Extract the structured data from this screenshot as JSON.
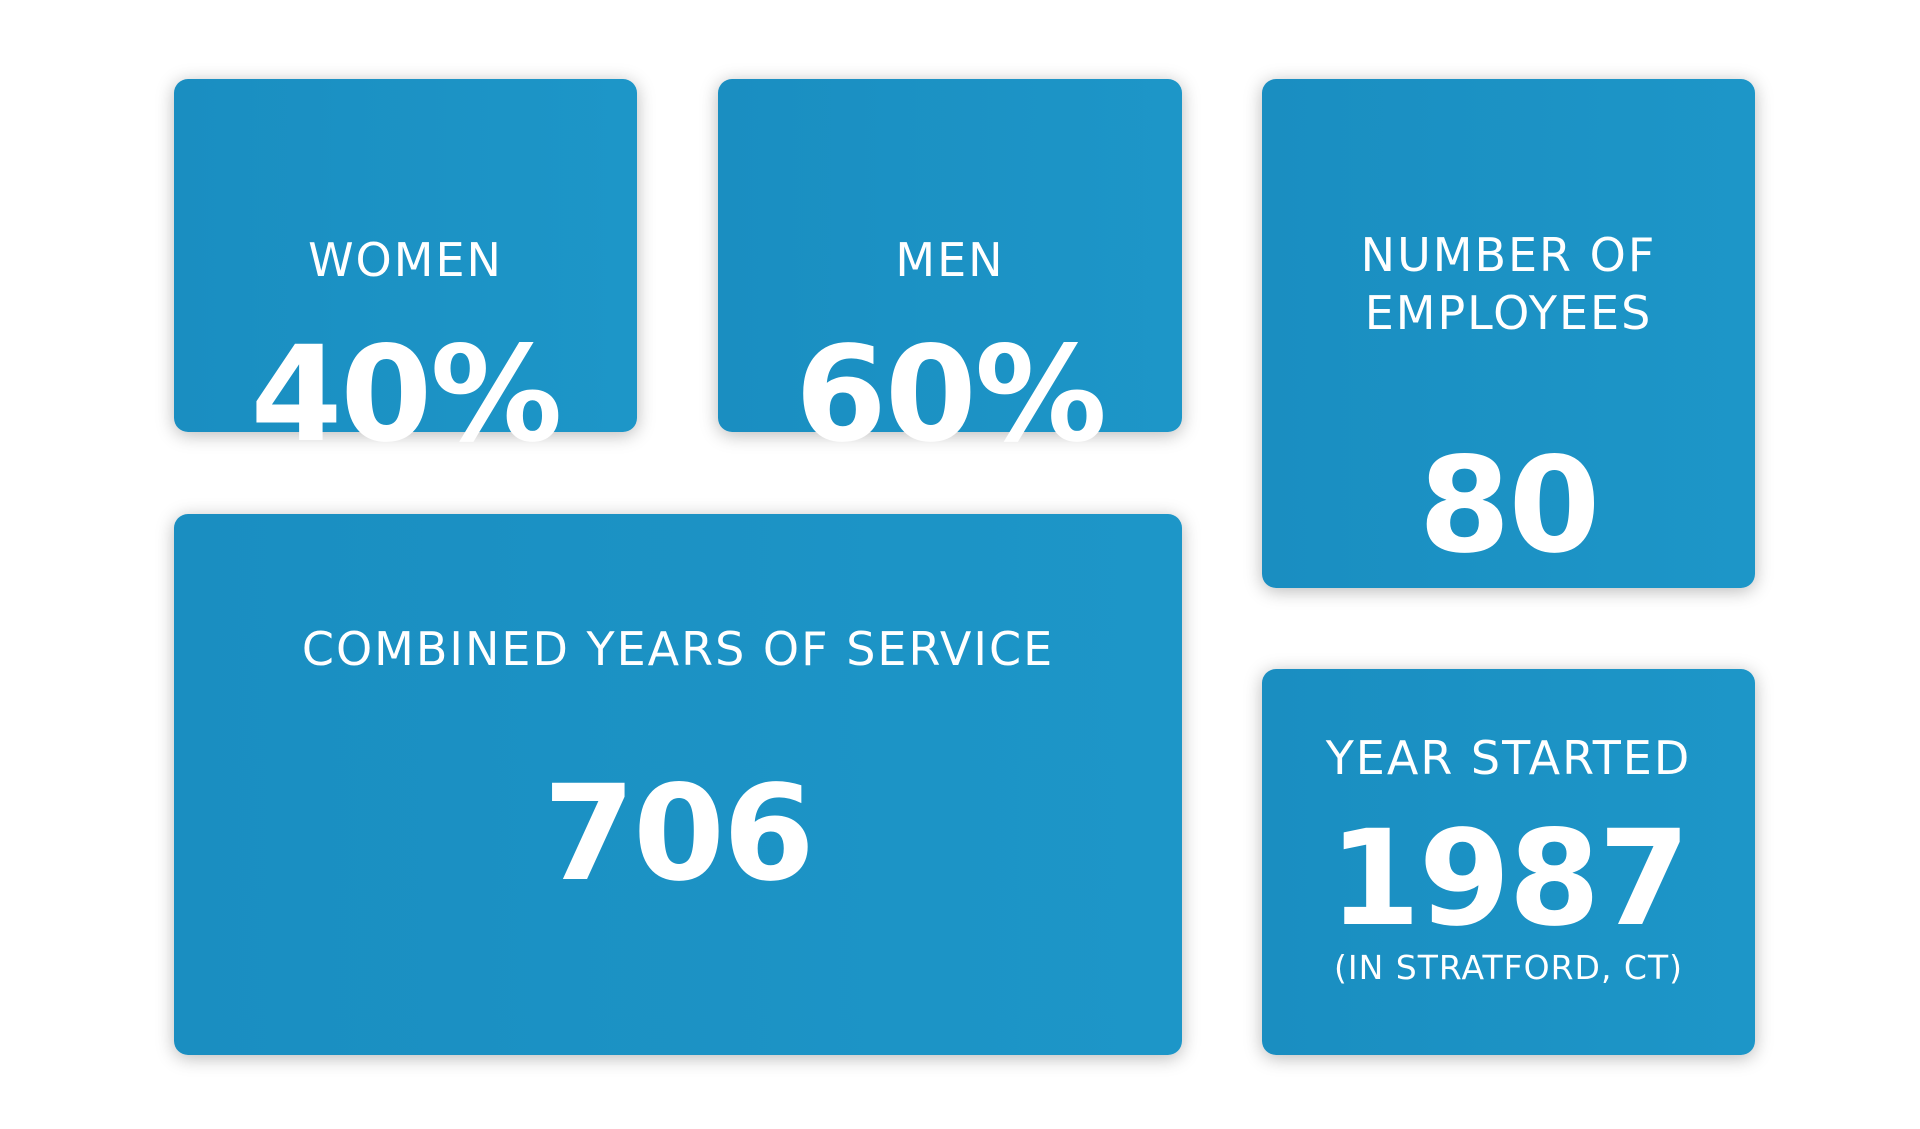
{
  "colors": {
    "card_background": "#1a8ec1",
    "card_background_gradient_end": "#1d96c8",
    "text": "#ffffff",
    "page_background": "#ffffff"
  },
  "stats": {
    "women": {
      "label": "WOMEN",
      "value": "40%"
    },
    "men": {
      "label": "MEN",
      "value": "60%"
    },
    "employees": {
      "label_line1": "NUMBER OF",
      "label_line2": "EMPLOYEES",
      "value": "80"
    },
    "service": {
      "label": "COMBINED YEARS OF SERVICE",
      "value": "706"
    },
    "year_started": {
      "label": "YEAR STARTED",
      "value": "1987",
      "note": "(IN STRATFORD, CT)"
    }
  }
}
